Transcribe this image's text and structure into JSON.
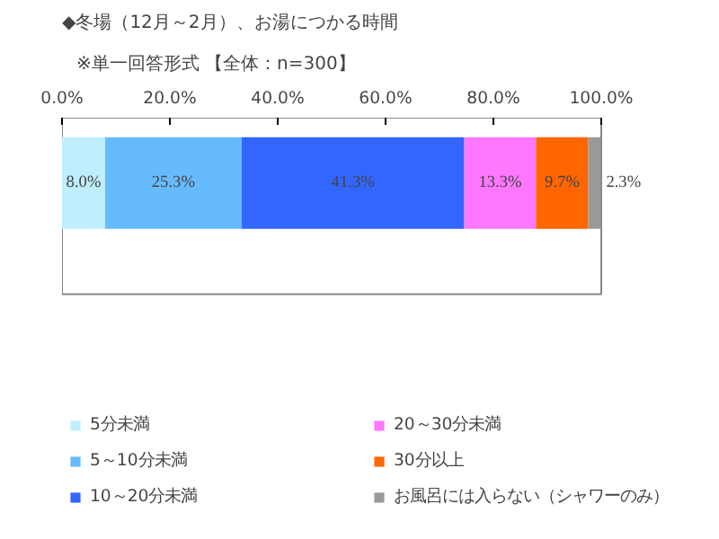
{
  "chart_data": {
    "type": "bar",
    "orientation": "horizontal",
    "stacked": true,
    "title": "◆冬場（12月～2月）、お湯につかる時間",
    "subtitle": "※単一回答形式 【全体：n=300】",
    "categories": [
      null
    ],
    "xlim": [
      0,
      100
    ],
    "xticks": [
      {
        "value": 0,
        "label": "0.0%"
      },
      {
        "value": 20,
        "label": "20.0%"
      },
      {
        "value": 40,
        "label": "40.0%"
      },
      {
        "value": 60,
        "label": "60.0%"
      },
      {
        "value": 80,
        "label": "80.0%"
      },
      {
        "value": 100,
        "label": "100.0%"
      }
    ],
    "series": [
      {
        "name": "5分未満",
        "color": "#bfeeff",
        "values": [
          8.0
        ],
        "value_labels": [
          "8.0%"
        ]
      },
      {
        "name": "5～10分未満",
        "color": "#66bbff",
        "values": [
          25.3
        ],
        "value_labels": [
          "25.3%"
        ]
      },
      {
        "name": "10～20分未満",
        "color": "#3366ff",
        "values": [
          41.3
        ],
        "value_labels": [
          "41.3%"
        ]
      },
      {
        "name": "20～30分未満",
        "color": "#ff77ff",
        "values": [
          13.3
        ],
        "value_labels": [
          "13.3%"
        ]
      },
      {
        "name": "30分以上",
        "color": "#ff6600",
        "values": [
          9.7
        ],
        "value_labels": [
          "9.7%"
        ]
      },
      {
        "name": "お風呂には入らない（シャワーのみ）",
        "color": "#999999",
        "values": [
          2.3
        ],
        "value_labels": [
          "2.3%"
        ]
      }
    ],
    "legend": "bottom",
    "grid": false
  }
}
